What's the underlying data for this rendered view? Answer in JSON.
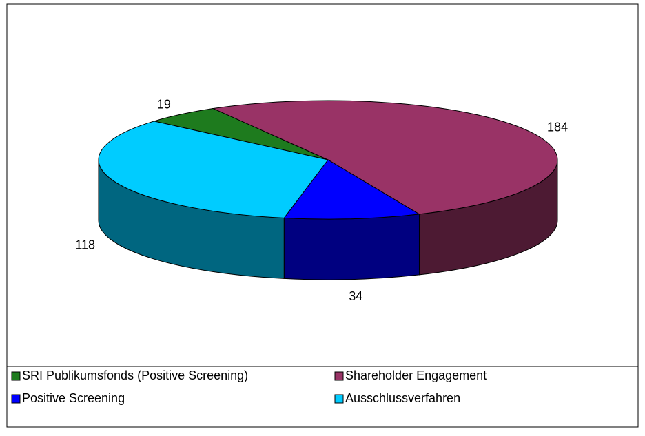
{
  "chart_data": {
    "type": "pie3d",
    "categories": [
      "SRI Publikumsfonds (Positive Screening)",
      "Shareholder Engagement",
      "Positive Screening",
      "Ausschlussverfahren"
    ],
    "values": [
      19,
      184,
      34,
      118
    ],
    "colors": [
      "#1e7b1e",
      "#993366",
      "#0000ff",
      "#00ccff"
    ],
    "legend": "bottom"
  }
}
